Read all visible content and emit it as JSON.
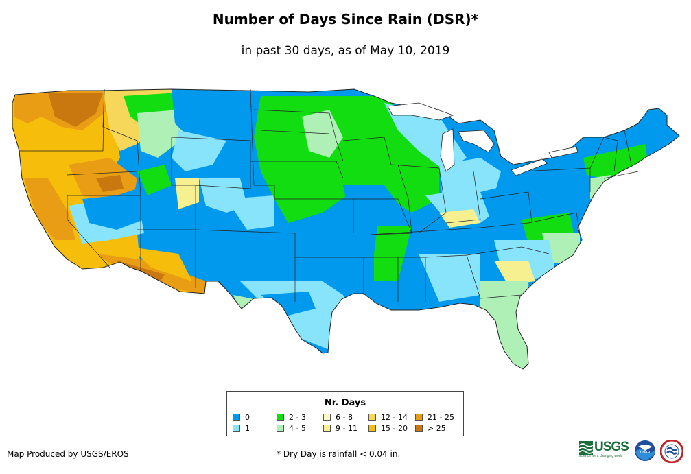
{
  "header": {
    "title": "Number of Days Since Rain (DSR)*",
    "subtitle": "in past 30 days, as of May 10, 2019"
  },
  "legend": {
    "title": "Nr. Days",
    "classes": [
      {
        "label": "0",
        "color": "#0099ee"
      },
      {
        "label": "1",
        "color": "#88e4fa"
      },
      {
        "label": "2 - 3",
        "color": "#11dd11"
      },
      {
        "label": "4 - 5",
        "color": "#aef0b6"
      },
      {
        "label": "6 - 8",
        "color": "#fbfbc6"
      },
      {
        "label": "9 - 11",
        "color": "#f6f090"
      },
      {
        "label": "12 - 14",
        "color": "#f6d75a"
      },
      {
        "label": "15 - 20",
        "color": "#f6bd0a"
      },
      {
        "label": "21 - 25",
        "color": "#e89d14"
      },
      {
        "label": "> 25",
        "color": "#c8780e"
      }
    ]
  },
  "footer": {
    "credit": "Map Produced by USGS/EROS",
    "footnote": "* Dry Day is rainfall < 0.04 in."
  },
  "logos": {
    "usgs_text": "USGS",
    "usgs_tagline": "science for a changing world",
    "noaa_text": "noaa"
  },
  "icons": [
    "usgs-logo-icon",
    "noaa-logo-icon",
    "nws-logo-icon"
  ]
}
